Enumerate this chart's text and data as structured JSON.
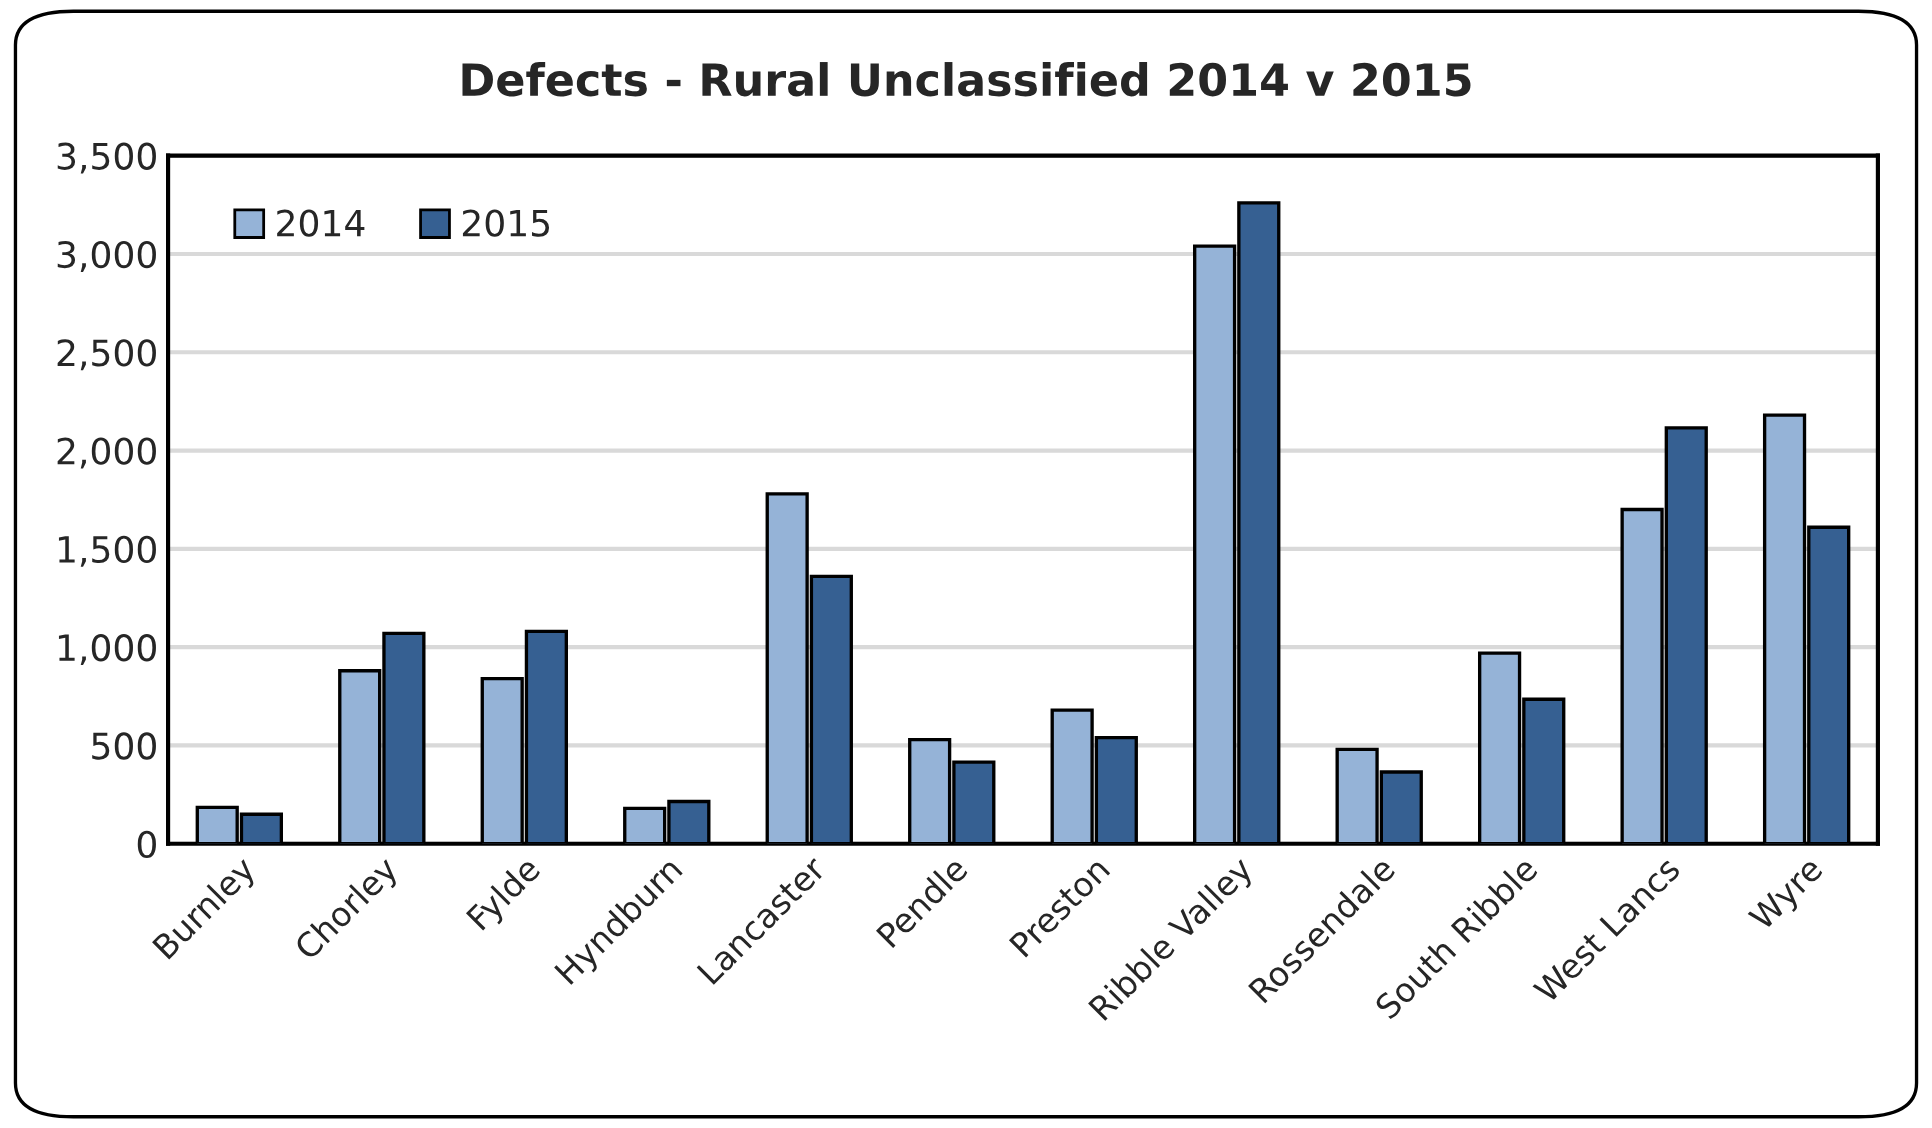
{
  "chart_data": {
    "type": "bar",
    "title": "Defects - Rural Unclassified 2014 v 2015",
    "categories": [
      "Burnley",
      "Chorley",
      "Fylde",
      "Hyndburn",
      "Lancaster",
      "Pendle",
      "Preston",
      "Ribble Valley",
      "Rossendale",
      "South Ribble",
      "West Lancs",
      "Wyre"
    ],
    "series": [
      {
        "name": "2014",
        "color": "#95b3d7",
        "values": [
          185,
          880,
          840,
          180,
          1780,
          530,
          680,
          3040,
          480,
          970,
          1700,
          2180
        ]
      },
      {
        "name": "2015",
        "color": "#366092",
        "values": [
          150,
          1070,
          1080,
          215,
          1360,
          415,
          540,
          3260,
          365,
          735,
          2115,
          1610
        ]
      }
    ],
    "ylim": [
      0,
      3500
    ],
    "yticks": [
      {
        "value": 0,
        "label": "0"
      },
      {
        "value": 500,
        "label": "500"
      },
      {
        "value": 1000,
        "label": "1,000"
      },
      {
        "value": 1500,
        "label": "1,500"
      },
      {
        "value": 2000,
        "label": "2,000"
      },
      {
        "value": 2500,
        "label": "2,500"
      },
      {
        "value": 3000,
        "label": "3,000"
      },
      {
        "value": 3500,
        "label": "3,500"
      }
    ],
    "grid": "y",
    "legend": "top left"
  }
}
